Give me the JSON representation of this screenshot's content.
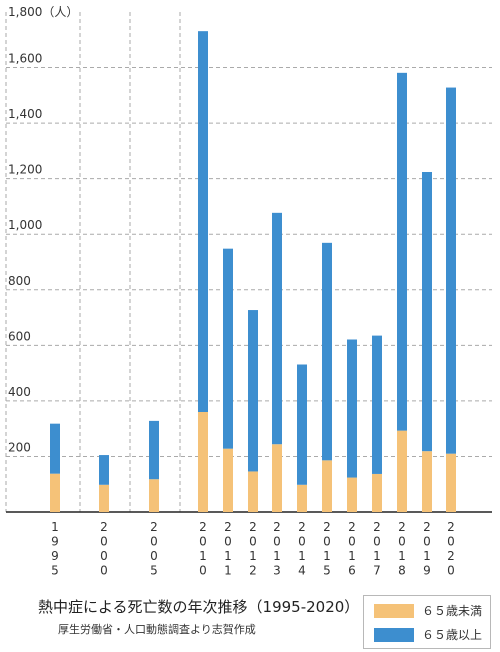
{
  "chart_data": {
    "type": "bar",
    "stacked": true,
    "unit_label": "1,800（人）",
    "categories": [
      "1995",
      "2000",
      "2005",
      "2010",
      "2011",
      "2012",
      "2013",
      "2014",
      "2015",
      "2016",
      "2017",
      "2018",
      "2019",
      "2020"
    ],
    "category_display": [
      [
        "1",
        "9",
        "9",
        "5"
      ],
      [
        "2",
        "0",
        "0",
        "0"
      ],
      [
        "2",
        "0",
        "0",
        "5"
      ],
      [
        "2",
        "0",
        "1",
        "0"
      ],
      [
        "2",
        "0",
        "1",
        "1"
      ],
      [
        "2",
        "0",
        "1",
        "2"
      ],
      [
        "2",
        "0",
        "1",
        "3"
      ],
      [
        "2",
        "0",
        "1",
        "4"
      ],
      [
        "2",
        "0",
        "1",
        "5"
      ],
      [
        "2",
        "0",
        "1",
        "6"
      ],
      [
        "2",
        "0",
        "1",
        "7"
      ],
      [
        "2",
        "0",
        "1",
        "8"
      ],
      [
        "2",
        "0",
        "1",
        "9"
      ],
      [
        "2",
        "0",
        "2",
        "0"
      ]
    ],
    "series": [
      {
        "name": "６５歳未満",
        "color": "#f5c278",
        "values": [
          138,
          98,
          118,
          360,
          228,
          146,
          244,
          98,
          186,
          124,
          137,
          293,
          219,
          210
        ]
      },
      {
        "name": "６５歳以上",
        "color": "#3d8ecf",
        "values": [
          180,
          107,
          210,
          1371,
          720,
          581,
          833,
          433,
          783,
          497,
          498,
          1288,
          1005,
          1318
        ]
      }
    ],
    "ylim": [
      0,
      1800
    ],
    "yticks": [
      200,
      400,
      600,
      800,
      1000,
      1200,
      1400,
      1600
    ],
    "ytick_labels": [
      "200",
      "400",
      "600",
      "800",
      "1,000",
      "1,200",
      "1,400",
      "1,600"
    ],
    "grid": true,
    "legend_position": "bottom-right"
  },
  "caption": {
    "title": "熱中症による死亡数の年次推移（1995-2020）",
    "source": "厚生労働省・人口動態調査より志賀作成"
  },
  "legend": {
    "under65": "６５歳未満",
    "over65": "６５歳以上"
  },
  "colors": {
    "under65": "#f5c278",
    "over65": "#3d8ecf",
    "grid": "#aaaaaa",
    "axis": "#222222"
  }
}
